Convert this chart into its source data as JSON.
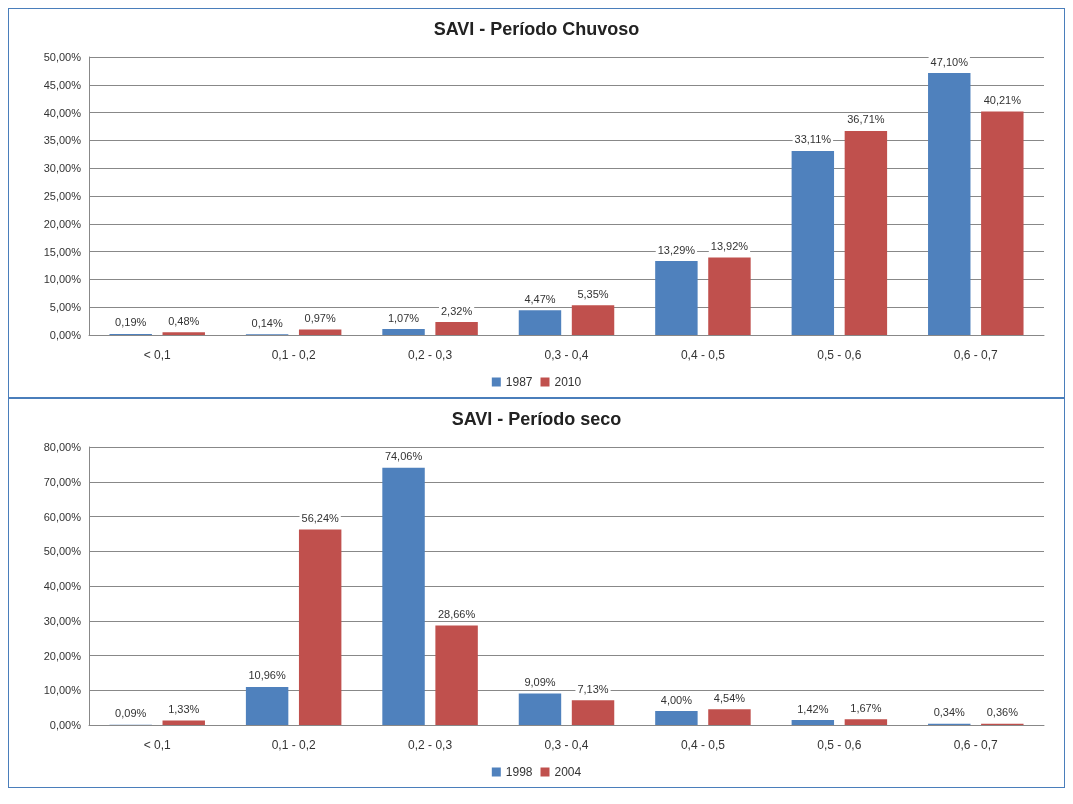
{
  "chart_data": [
    {
      "type": "bar",
      "title": "SAVI - Período Chuvoso",
      "categories": [
        "< 0,1",
        "0,1 - 0,2",
        "0,2 - 0,3",
        "0,3 - 0,4",
        "0,4 - 0,5",
        "0,5 - 0,6",
        "0,6 - 0,7"
      ],
      "series": [
        {
          "name": "1987",
          "color": "#4f81bd",
          "values": [
            0.19,
            0.14,
            1.07,
            4.47,
            13.29,
            33.11,
            47.1
          ],
          "value_labels": [
            "0,19%",
            "0,14%",
            "1,07%",
            "4,47%",
            "13,29%",
            "33,11%",
            "47,10%"
          ]
        },
        {
          "name": "2010",
          "color": "#c0504d",
          "values": [
            0.48,
            0.97,
            2.32,
            5.35,
            13.92,
            36.71,
            40.21
          ],
          "value_labels": [
            "0,48%",
            "0,97%",
            "2,32%",
            "5,35%",
            "13,92%",
            "36,71%",
            "40,21%"
          ]
        }
      ],
      "ylim": [
        0,
        50
      ],
      "yticks": [
        {
          "value": 0,
          "label": "0,00%"
        },
        {
          "value": 5,
          "label": "5,00%"
        },
        {
          "value": 10,
          "label": "10,00%"
        },
        {
          "value": 15,
          "label": "15,00%"
        },
        {
          "value": 20,
          "label": "20,00%"
        },
        {
          "value": 25,
          "label": "25,00%"
        },
        {
          "value": 30,
          "label": "30,00%"
        },
        {
          "value": 35,
          "label": "35,00%"
        },
        {
          "value": 40,
          "label": "40,00%"
        },
        {
          "value": 45,
          "label": "45,00%"
        },
        {
          "value": 50,
          "label": "50,00%"
        }
      ],
      "grid": "y",
      "legend": "bottom"
    },
    {
      "type": "bar",
      "title": "SAVI - Período seco",
      "categories": [
        "< 0,1",
        "0,1 - 0,2",
        "0,2 - 0,3",
        "0,3 - 0,4",
        "0,4 - 0,5",
        "0,5 - 0,6",
        "0,6 - 0,7"
      ],
      "series": [
        {
          "name": "1998",
          "color": "#4f81bd",
          "values": [
            0.09,
            10.96,
            74.06,
            9.09,
            4.0,
            1.42,
            0.34
          ],
          "value_labels": [
            "0,09%",
            "10,96%",
            "74,06%",
            "9,09%",
            "4,00%",
            "1,42%",
            "0,34%"
          ]
        },
        {
          "name": "2004",
          "color": "#c0504d",
          "values": [
            1.33,
            56.24,
            28.66,
            7.13,
            4.54,
            1.67,
            0.36
          ],
          "value_labels": [
            "1,33%",
            "56,24%",
            "28,66%",
            "7,13%",
            "4,54%",
            "1,67%",
            "0,36%"
          ]
        }
      ],
      "ylim": [
        0,
        80
      ],
      "yticks": [
        {
          "value": 0,
          "label": "0,00%"
        },
        {
          "value": 10,
          "label": "10,00%"
        },
        {
          "value": 20,
          "label": "20,00%"
        },
        {
          "value": 30,
          "label": "30,00%"
        },
        {
          "value": 40,
          "label": "40,00%"
        },
        {
          "value": 50,
          "label": "50,00%"
        },
        {
          "value": 60,
          "label": "60,00%"
        },
        {
          "value": 70,
          "label": "70,00%"
        },
        {
          "value": 80,
          "label": "80,00%"
        }
      ],
      "grid": "y",
      "legend": "bottom"
    }
  ]
}
